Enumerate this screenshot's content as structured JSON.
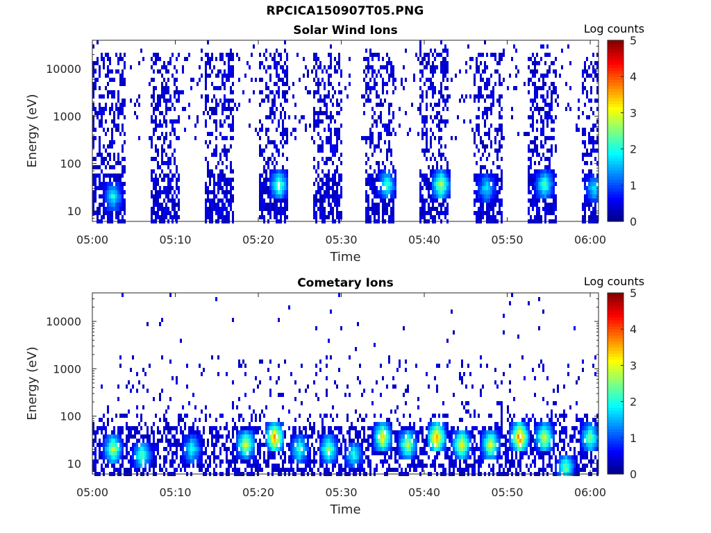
{
  "figure": {
    "title": "RPCICA150907T05.PNG"
  },
  "chart_data": [
    {
      "type": "heatmap",
      "title": "Solar Wind Ions",
      "xlabel": "Time",
      "ylabel": "Energy (eV)",
      "y_scale": "log",
      "y_ticks": [
        "10",
        "100",
        "1000",
        "10000"
      ],
      "ylim": [
        6,
        40000
      ],
      "x_ticks": [
        "05:00",
        "05:10",
        "05:20",
        "05:30",
        "05:40",
        "05:50",
        "06:00"
      ],
      "xlim": [
        "05:00",
        "06:01"
      ],
      "colorbar": {
        "label": "Log counts",
        "ticks": [
          "0",
          "1",
          "2",
          "3",
          "4",
          "5"
        ],
        "range": [
          0,
          5
        ],
        "colormap": "jet"
      },
      "sweep_windows_min": [
        [
          0,
          4
        ],
        [
          7,
          10.5
        ],
        [
          13.5,
          17
        ],
        [
          20,
          23.5
        ],
        [
          26.5,
          30
        ],
        [
          33,
          36.5
        ],
        [
          39.5,
          43
        ],
        [
          46,
          49.5
        ],
        [
          52.5,
          56
        ],
        [
          59,
          61
        ]
      ],
      "peaks": [
        {
          "time_min": 2.5,
          "energy_ev": 20,
          "log_counts": 2
        },
        {
          "time_min": 22.5,
          "energy_ev": 35,
          "log_counts": 2.5
        },
        {
          "time_min": 35.5,
          "energy_ev": 35,
          "log_counts": 2.2
        },
        {
          "time_min": 42,
          "energy_ev": 35,
          "log_counts": 2.8
        },
        {
          "time_min": 47.5,
          "energy_ev": 30,
          "log_counts": 1.8
        },
        {
          "time_min": 54.5,
          "energy_ev": 35,
          "log_counts": 2.3
        },
        {
          "time_min": 60.5,
          "energy_ev": 30,
          "log_counts": 1.8
        }
      ]
    },
    {
      "type": "heatmap",
      "title": "Cometary Ions",
      "xlabel": "Time",
      "ylabel": "Energy (eV)",
      "y_scale": "log",
      "y_ticks": [
        "10",
        "100",
        "1000",
        "10000"
      ],
      "ylim": [
        6,
        40000
      ],
      "x_ticks": [
        "05:00",
        "05:10",
        "05:20",
        "05:30",
        "05:40",
        "05:50",
        "06:00"
      ],
      "xlim": [
        "05:00",
        "06:01"
      ],
      "colorbar": {
        "label": "Log counts",
        "ticks": [
          "0",
          "1",
          "2",
          "3",
          "4",
          "5"
        ],
        "range": [
          0,
          5
        ],
        "colormap": "jet"
      },
      "peaks": [
        {
          "time_min": 2.5,
          "energy_ev": 20,
          "log_counts": 2.8
        },
        {
          "time_min": 6,
          "energy_ev": 15,
          "log_counts": 2.4
        },
        {
          "time_min": 12,
          "energy_ev": 20,
          "log_counts": 2
        },
        {
          "time_min": 18.5,
          "energy_ev": 25,
          "log_counts": 3
        },
        {
          "time_min": 22,
          "energy_ev": 35,
          "log_counts": 3.8
        },
        {
          "time_min": 25,
          "energy_ev": 20,
          "log_counts": 2.2
        },
        {
          "time_min": 28.5,
          "energy_ev": 20,
          "log_counts": 2.6
        },
        {
          "time_min": 31.5,
          "energy_ev": 15,
          "log_counts": 2
        },
        {
          "time_min": 35,
          "energy_ev": 35,
          "log_counts": 3.2
        },
        {
          "time_min": 38,
          "energy_ev": 25,
          "log_counts": 2.8
        },
        {
          "time_min": 41.5,
          "energy_ev": 35,
          "log_counts": 3.8
        },
        {
          "time_min": 44.5,
          "energy_ev": 25,
          "log_counts": 3.2
        },
        {
          "time_min": 48,
          "energy_ev": 25,
          "log_counts": 3
        },
        {
          "time_min": 51.5,
          "energy_ev": 35,
          "log_counts": 4
        },
        {
          "time_min": 54.5,
          "energy_ev": 35,
          "log_counts": 3
        },
        {
          "time_min": 57,
          "energy_ev": 8,
          "log_counts": 2.5
        },
        {
          "time_min": 60,
          "energy_ev": 35,
          "log_counts": 2.6
        }
      ]
    }
  ]
}
